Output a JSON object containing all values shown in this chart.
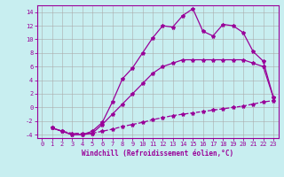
{
  "xlabel": "Windchill (Refroidissement éolien,°C)",
  "bg_color": "#c8eef0",
  "line_color": "#990099",
  "grid_color": "#aaaaaa",
  "xlim": [
    -0.5,
    23.5
  ],
  "ylim": [
    -4.5,
    15
  ],
  "yticks": [
    -4,
    -2,
    0,
    2,
    4,
    6,
    8,
    10,
    12,
    14
  ],
  "xticks": [
    0,
    1,
    2,
    3,
    4,
    5,
    6,
    7,
    8,
    9,
    10,
    11,
    12,
    13,
    14,
    15,
    16,
    17,
    18,
    19,
    20,
    21,
    22,
    23
  ],
  "line1_x": [
    1,
    2,
    3,
    4,
    5,
    6,
    7,
    8,
    9,
    10,
    11,
    12,
    13,
    14,
    15,
    16,
    17,
    18,
    19,
    20,
    21,
    22,
    23
  ],
  "line1_y": [
    -3,
    -3.5,
    -3.8,
    -3.8,
    -3.8,
    -3.5,
    -3.2,
    -2.8,
    -2.5,
    -2.2,
    -1.8,
    -1.5,
    -1.2,
    -1.0,
    -0.8,
    -0.6,
    -0.4,
    -0.2,
    0.0,
    0.2,
    0.5,
    0.8,
    1.0
  ],
  "line2_x": [
    1,
    2,
    3,
    4,
    5,
    6,
    7,
    8,
    9,
    10,
    11,
    12,
    13,
    14,
    15,
    16,
    17,
    18,
    19,
    20,
    21,
    22,
    23
  ],
  "line2_y": [
    -3,
    -3.5,
    -4.0,
    -4.0,
    -3.8,
    -2.5,
    -1.0,
    0.5,
    2.0,
    3.5,
    5.0,
    6.0,
    6.5,
    7.0,
    7.0,
    7.0,
    7.0,
    7.0,
    7.0,
    7.0,
    6.5,
    6.0,
    1.5
  ],
  "line3_x": [
    1,
    2,
    3,
    4,
    5,
    6,
    7,
    8,
    9,
    10,
    11,
    12,
    13,
    14,
    15,
    16,
    17,
    18,
    19,
    20,
    21,
    22,
    23
  ],
  "line3_y": [
    -3,
    -3.5,
    -4.0,
    -4.0,
    -3.5,
    -2.2,
    0.8,
    4.2,
    5.8,
    8.0,
    10.2,
    12.0,
    11.8,
    13.5,
    14.5,
    11.2,
    10.5,
    12.2,
    12.0,
    11.0,
    8.2,
    6.8,
    1.5
  ],
  "marker_size": 3,
  "line_width": 0.9,
  "tick_fontsize": 5,
  "xlabel_fontsize": 5.5
}
